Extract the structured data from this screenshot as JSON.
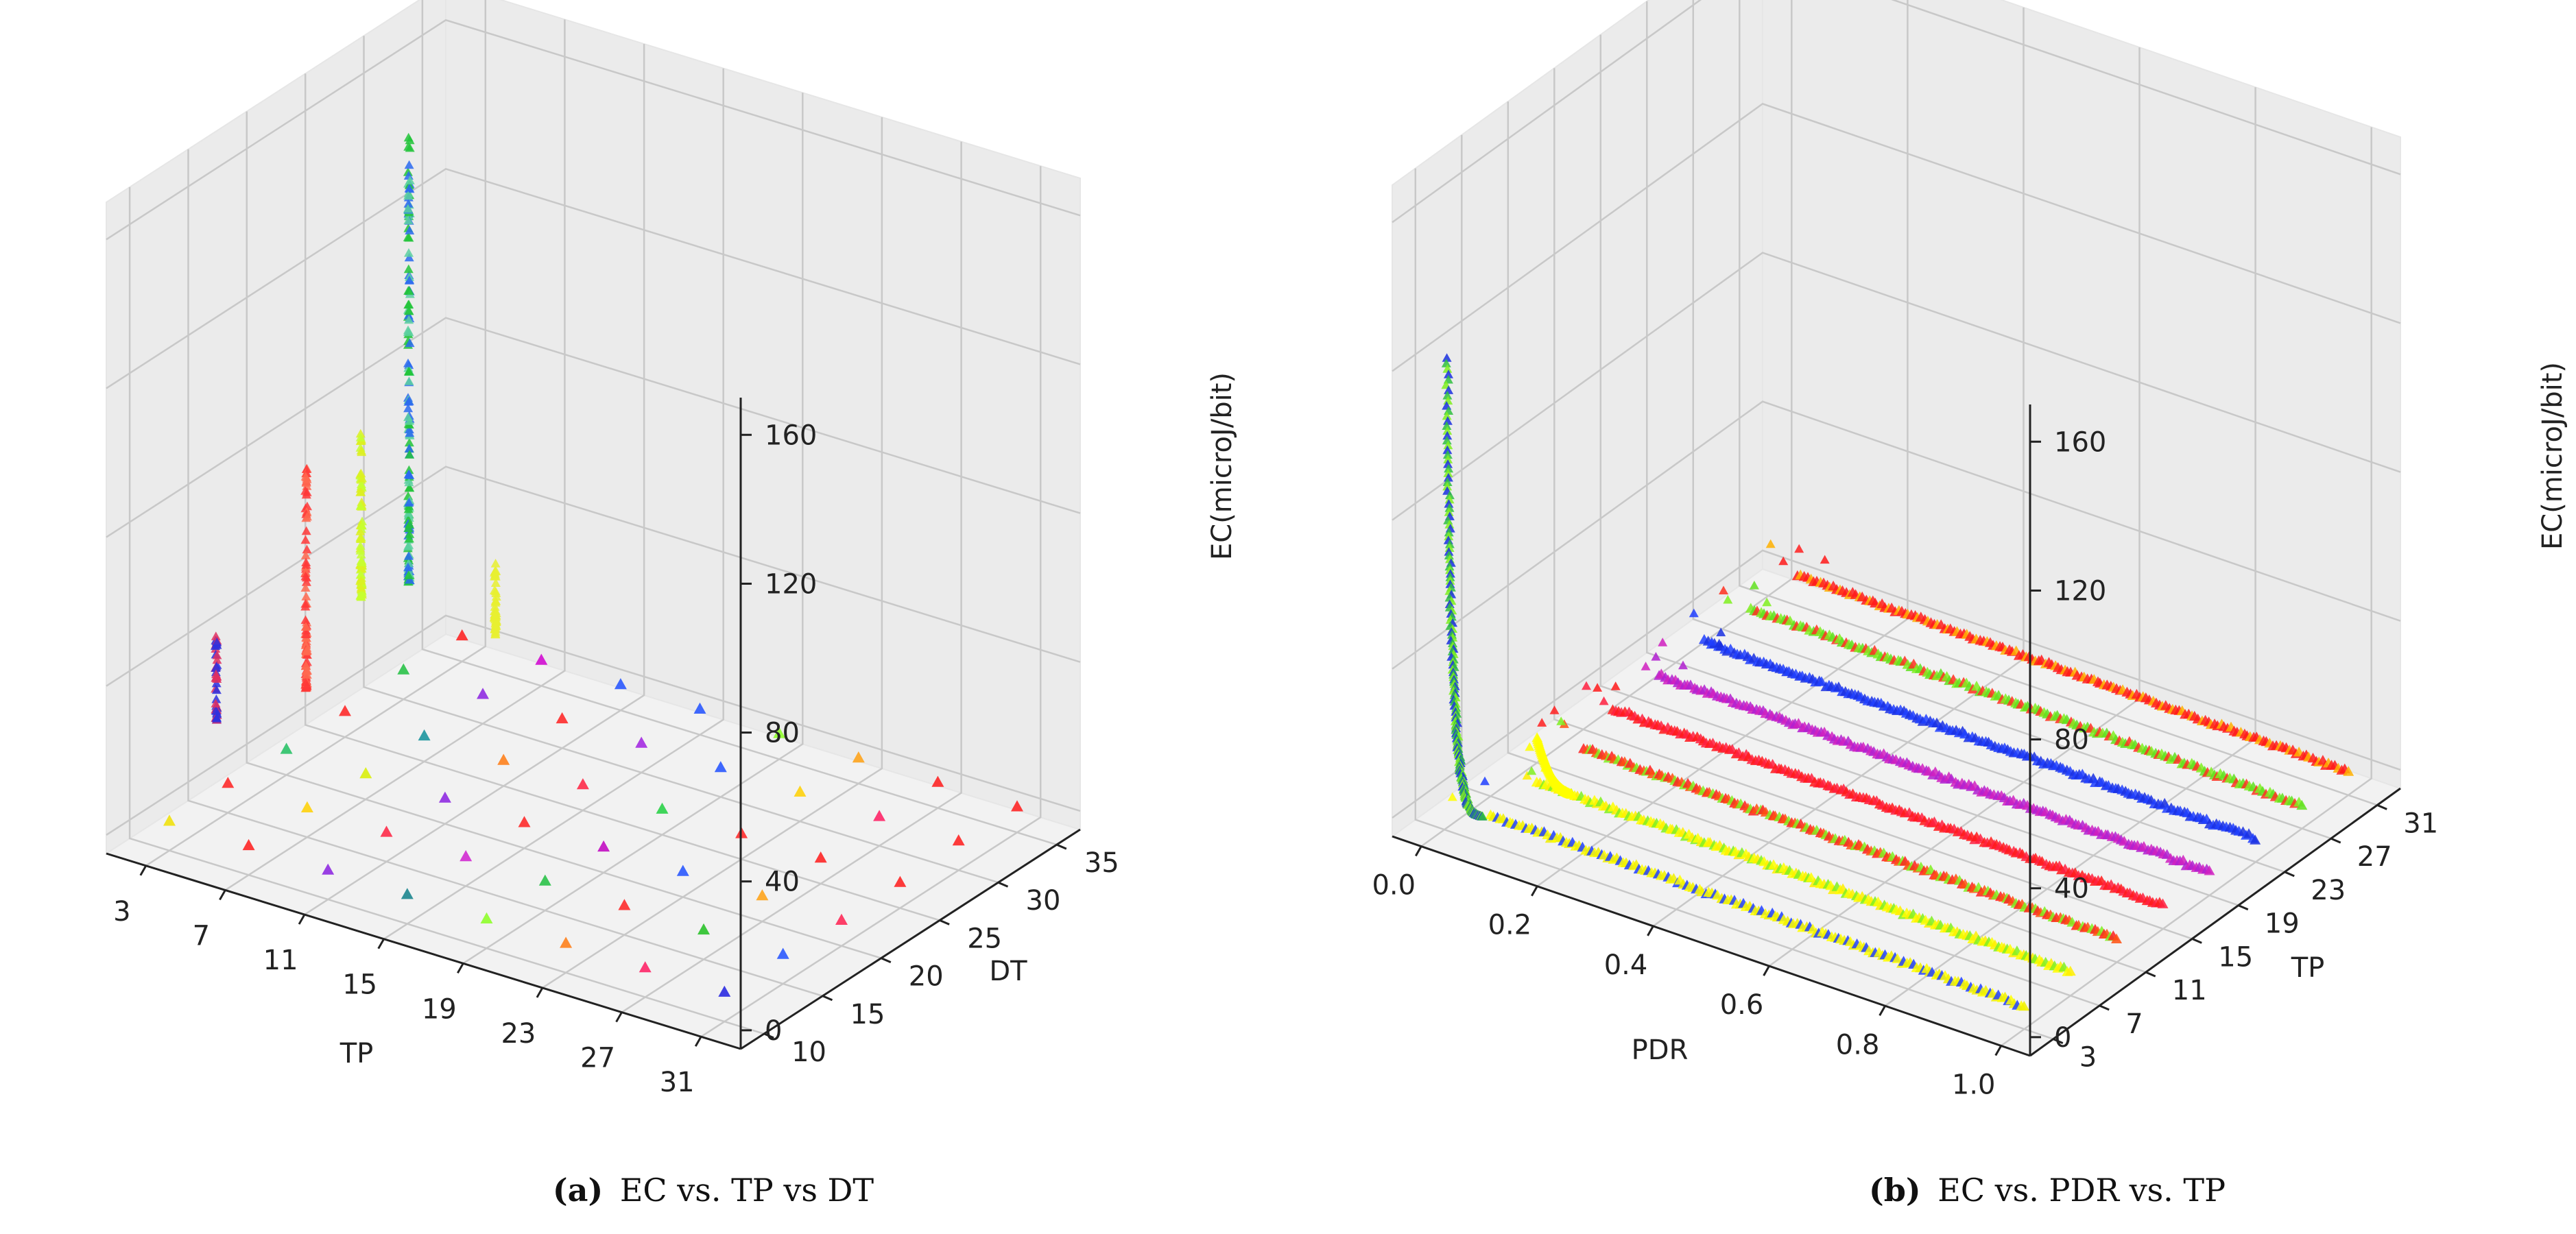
{
  "chart_data": [
    {
      "type": "scatter3d",
      "caption_label": "(a)",
      "caption_text": "EC vs. TP vs DT",
      "xlabel": "TP",
      "ylabel": "DT",
      "zlabel": "EC(microJ/bit)",
      "x_ticks": [
        "3",
        "7",
        "11",
        "15",
        "19",
        "23",
        "27",
        "31"
      ],
      "y_ticks": [
        "10",
        "15",
        "20",
        "25",
        "30",
        "35"
      ],
      "z_ticks": [
        "0",
        "40",
        "80",
        "120",
        "160"
      ],
      "xlim": [
        1,
        33
      ],
      "ylim": [
        8,
        37
      ],
      "zlim": [
        -5,
        170
      ],
      "grid": true,
      "columns": [
        {
          "tp": 8,
          "dt": 22,
          "ec_min": 51,
          "ec_max": 171,
          "colors": [
            "#2a6af0",
            "#22c43a",
            "#5cd0a0"
          ]
        },
        {
          "tp": 4,
          "dt": 20,
          "ec_min": 20,
          "ec_max": 80,
          "colors": [
            "#ff3838",
            "#ff6a50"
          ]
        },
        {
          "tp": 3,
          "dt": 14,
          "ec_min": 22,
          "ec_max": 45,
          "colors": [
            "#2c30e0",
            "#e03060"
          ]
        },
        {
          "tp": 5,
          "dt": 23,
          "ec_min": 40,
          "ec_max": 85,
          "colors": [
            "#ddf020",
            "#c6ff30"
          ]
        },
        {
          "tp": 10,
          "dt": 26,
          "ec_min": 32,
          "ec_max": 52,
          "colors": [
            "#e8f030"
          ]
        }
      ],
      "grid_points": {
        "tp_values": [
          3,
          7,
          11,
          15,
          19,
          23,
          27,
          31
        ],
        "dt_values": [
          10,
          15,
          20,
          25,
          30,
          35
        ],
        "ec_values": [
          3,
          3,
          2,
          2,
          3,
          2
        ],
        "colors": [
          [
            "#f0e000",
            "#ff1a1a",
            "#8a20e0",
            "#10808a",
            "#8aff20",
            "#ff7a10",
            "#ff1a60",
            "#2020e0"
          ],
          [
            "#ff2020",
            "#ffd000",
            "#ff2040",
            "#d020d0",
            "#20c040",
            "#ff2020",
            "#20c020",
            "#2050ff"
          ],
          [
            "#20c060",
            "#d8f000",
            "#8a20e0",
            "#ff2020",
            "#c000c0",
            "#2050ff",
            "#ffa010",
            "#ff2050"
          ],
          [
            "#ff2020",
            "#10909a",
            "#ff7a10",
            "#ff2040",
            "#20d040",
            "#ff2020",
            "#ff1a1a",
            "#ff1a1a"
          ],
          [
            "#20c040",
            "#8a20e0",
            "#ff2020",
            "#a020e0",
            "#2050ff",
            "#ffd000",
            "#ff1a60",
            "#ff1a1a"
          ],
          [
            "#ff1a1a",
            "#d000d0",
            "#2050ff",
            "#2050ff",
            "#8aff20",
            "#ffa010",
            "#ff1a1a",
            "#ff1a1a"
          ]
        ]
      }
    },
    {
      "type": "scatter3d",
      "caption_label": "(b)",
      "caption_text": "EC vs. PDR vs. TP",
      "xlabel": "PDR",
      "ylabel": "TP",
      "zlabel": "EC(microJ/bit)",
      "x_ticks": [
        "0.0",
        "0.2",
        "0.4",
        "0.6",
        "0.8",
        "1.0"
      ],
      "y_ticks": [
        "3",
        "7",
        "11",
        "15",
        "19",
        "23",
        "27",
        "31"
      ],
      "z_ticks": [
        "0",
        "40",
        "80",
        "120",
        "160"
      ],
      "xlim": [
        -0.05,
        1.05
      ],
      "ylim": [
        1,
        33
      ],
      "zlim": [
        -5,
        170
      ],
      "grid": true,
      "lines": [
        {
          "tp": 3,
          "colors": [
            "#ffff00",
            "#f0f000",
            "#2040ff"
          ]
        },
        {
          "tp": 7,
          "colors": [
            "#ffff00",
            "#ffee00",
            "#80f020"
          ]
        },
        {
          "tp": 11,
          "colors": [
            "#ff2020",
            "#ff5010",
            "#80f020"
          ]
        },
        {
          "tp": 15,
          "colors": [
            "#ff1a1a",
            "#ff2040"
          ]
        },
        {
          "tp": 19,
          "colors": [
            "#b020d0",
            "#d020c0"
          ]
        },
        {
          "tp": 23,
          "colors": [
            "#2040ff",
            "#1a30e0"
          ]
        },
        {
          "tp": 27,
          "colors": [
            "#80f020",
            "#60e020",
            "#ff3020"
          ]
        },
        {
          "tp": 31,
          "colors": [
            "#ff1a1a",
            "#ffb000",
            "#ff2020"
          ]
        }
      ],
      "curve": {
        "tp": 3,
        "colors": [
          "#1a30e0",
          "#30c040",
          "#80f020"
        ]
      }
    }
  ]
}
